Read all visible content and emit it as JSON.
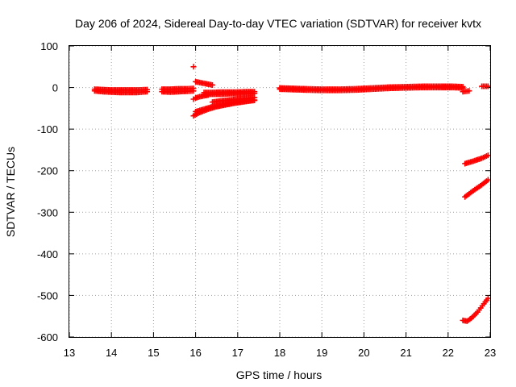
{
  "chart_data": {
    "type": "scatter",
    "title": "Day 206 of 2024, Sidereal Day-to-day VTEC variation (SDTVAR) for receiver kvtx",
    "xlabel": "GPS time / hours",
    "ylabel": "SDTVAR / TECUs",
    "xlim": [
      13,
      23
    ],
    "ylim": [
      -600,
      100
    ],
    "xticks": [
      "13",
      "14",
      "15",
      "16",
      "17",
      "18",
      "19",
      "20",
      "21",
      "22",
      "23"
    ],
    "yticks": [
      "100",
      "0",
      "-100",
      "-200",
      "-300",
      "-400",
      "-500",
      "-600"
    ],
    "grid": true,
    "legend": "none",
    "marker": "plus",
    "color": "#ff0000",
    "series": [
      {
        "x": [
          13.6,
          13.8,
          14.0,
          14.2,
          14.4,
          14.6,
          14.85
        ],
        "values": [
          -8,
          -10,
          -11,
          -12,
          -12,
          -12,
          -10
        ]
      },
      {
        "x": [
          13.6,
          13.8,
          14.0,
          14.2,
          14.4,
          14.6,
          14.85
        ],
        "values": [
          -4,
          -5,
          -6,
          -6,
          -6,
          -6,
          -5
        ]
      },
      {
        "x": [
          15.2,
          15.4,
          15.6,
          15.8,
          15.95
        ],
        "values": [
          -10,
          -11,
          -10,
          -9,
          -8
        ]
      },
      {
        "x": [
          15.2,
          15.4,
          15.6,
          15.8,
          15.95
        ],
        "values": [
          -4,
          -4,
          -3,
          -3,
          -2
        ]
      },
      {
        "x": [
          15.95
        ],
        "values": [
          50
        ]
      },
      {
        "x": [
          16.0,
          16.1,
          16.2,
          16.3,
          16.4
        ],
        "values": [
          14,
          12,
          10,
          8,
          6
        ]
      },
      {
        "x": [
          15.95,
          16.0,
          16.1,
          16.2,
          16.3
        ],
        "values": [
          -28,
          -25,
          -22,
          -20,
          -18
        ]
      },
      {
        "x": [
          16.2,
          16.4,
          16.6,
          16.8,
          17.0,
          17.2,
          17.4
        ],
        "values": [
          -12,
          -12,
          -11,
          -11,
          -11,
          -10,
          -10
        ]
      },
      {
        "x": [
          16.2,
          16.4,
          16.6,
          16.8,
          17.0,
          17.2,
          17.4
        ],
        "values": [
          -17,
          -16,
          -16,
          -15,
          -15,
          -15,
          -14
        ]
      },
      {
        "x": [
          16.4,
          16.6,
          16.8,
          17.0,
          17.2,
          17.4
        ],
        "values": [
          -35,
          -32,
          -30,
          -28,
          -26,
          -24
        ]
      },
      {
        "x": [
          15.95,
          16.1,
          16.3,
          16.5,
          16.7,
          16.9,
          17.1,
          17.3,
          17.4
        ],
        "values": [
          -68,
          -60,
          -52,
          -46,
          -42,
          -38,
          -35,
          -32,
          -31
        ]
      },
      {
        "x": [
          16.0,
          16.2,
          16.4,
          16.6,
          16.8,
          17.0,
          17.2,
          17.4
        ],
        "values": [
          -58,
          -52,
          -46,
          -42,
          -38,
          -35,
          -32,
          -30
        ]
      },
      {
        "x": [
          18.0,
          18.3,
          18.6,
          19.0,
          19.4,
          19.8,
          20.2,
          20.6,
          21.0,
          21.4,
          21.8,
          22.1,
          22.35
        ],
        "values": [
          -4,
          -5,
          -6,
          -7,
          -7,
          -6,
          -4,
          -2,
          -1,
          0,
          0,
          0,
          -1
        ]
      },
      {
        "x": [
          18.0,
          18.3,
          18.6,
          19.0,
          19.4,
          19.8,
          20.2,
          20.6,
          21.0,
          21.4,
          21.8,
          22.1,
          22.35
        ],
        "values": [
          -1,
          -2,
          -3,
          -4,
          -4,
          -3,
          -1,
          1,
          2,
          3,
          3,
          3,
          2
        ]
      },
      {
        "x": [
          22.35,
          22.5
        ],
        "values": [
          -10,
          -8
        ]
      },
      {
        "x": [
          22.8,
          22.95
        ],
        "values": [
          3,
          3
        ]
      },
      {
        "x": [
          22.4,
          22.6,
          22.8,
          22.95
        ],
        "values": [
          -183,
          -177,
          -170,
          -163
        ]
      },
      {
        "x": [
          22.4,
          22.6,
          22.8,
          22.95
        ],
        "values": [
          -263,
          -248,
          -234,
          -222
        ]
      },
      {
        "x": [
          22.35,
          22.45,
          22.55,
          22.7,
          22.85,
          22.95
        ],
        "values": [
          -560,
          -562,
          -555,
          -540,
          -520,
          -507
        ]
      }
    ]
  }
}
